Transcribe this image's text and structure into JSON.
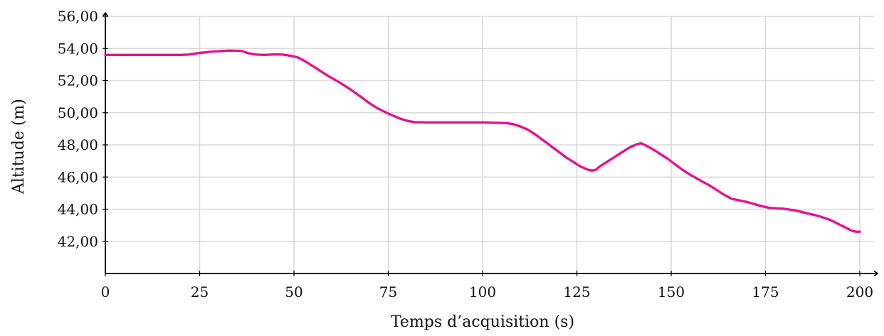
{
  "chart_data": {
    "type": "line",
    "title": "",
    "xlabel": "Temps d’acquisition (s)",
    "ylabel": "Altitude (m)",
    "xlim": [
      0,
      200
    ],
    "ylim": [
      40.0,
      56.0
    ],
    "x_ticks": [
      0,
      25,
      50,
      75,
      100,
      125,
      150,
      175,
      200
    ],
    "x_tick_labels": [
      "0",
      "25",
      "50",
      "75",
      "100",
      "125",
      "150",
      "175",
      "200"
    ],
    "y_ticks": [
      42,
      44,
      46,
      48,
      50,
      52,
      54,
      56
    ],
    "y_tick_labels": [
      "42,00",
      "44,00",
      "46,00",
      "48,00",
      "50,00",
      "52,00",
      "54,00",
      "56,00"
    ],
    "grid": true,
    "legend": "none",
    "colors": {
      "series": "#e8118f",
      "grid": "#d9d9d9",
      "axis": "#000000"
    },
    "series": [
      {
        "x": [
          0,
          5,
          10,
          15,
          20,
          22,
          25,
          28,
          30,
          33,
          36,
          38,
          40,
          42,
          45,
          47,
          49,
          51,
          53,
          55,
          57,
          59,
          62,
          65,
          68,
          70,
          72,
          75,
          78,
          80,
          82,
          85,
          90,
          95,
          100,
          103,
          106,
          108,
          110,
          112,
          114,
          116,
          118,
          120,
          122,
          124,
          126,
          128,
          129,
          130,
          131,
          133,
          135,
          137,
          139,
          141,
          142,
          143,
          145,
          147,
          149,
          151,
          153,
          155,
          158,
          160,
          162,
          164,
          166,
          170,
          173,
          176,
          180,
          183,
          186,
          189,
          192,
          195,
          198,
          199,
          200
        ],
        "y": [
          53.6,
          53.6,
          53.6,
          53.6,
          53.6,
          53.62,
          53.72,
          53.8,
          53.83,
          53.87,
          53.85,
          53.7,
          53.62,
          53.6,
          53.63,
          53.62,
          53.55,
          53.45,
          53.2,
          52.9,
          52.6,
          52.3,
          51.9,
          51.45,
          50.95,
          50.6,
          50.3,
          49.95,
          49.65,
          49.5,
          49.42,
          49.4,
          49.4,
          49.4,
          49.4,
          49.38,
          49.36,
          49.3,
          49.15,
          48.95,
          48.65,
          48.3,
          47.95,
          47.6,
          47.25,
          46.95,
          46.65,
          46.45,
          46.4,
          46.45,
          46.65,
          46.95,
          47.25,
          47.55,
          47.85,
          48.05,
          48.1,
          48.0,
          47.75,
          47.45,
          47.15,
          46.8,
          46.45,
          46.15,
          45.75,
          45.5,
          45.2,
          44.9,
          44.65,
          44.45,
          44.25,
          44.08,
          44.02,
          43.92,
          43.75,
          43.58,
          43.35,
          43.0,
          42.65,
          42.6,
          42.6
        ]
      }
    ]
  }
}
